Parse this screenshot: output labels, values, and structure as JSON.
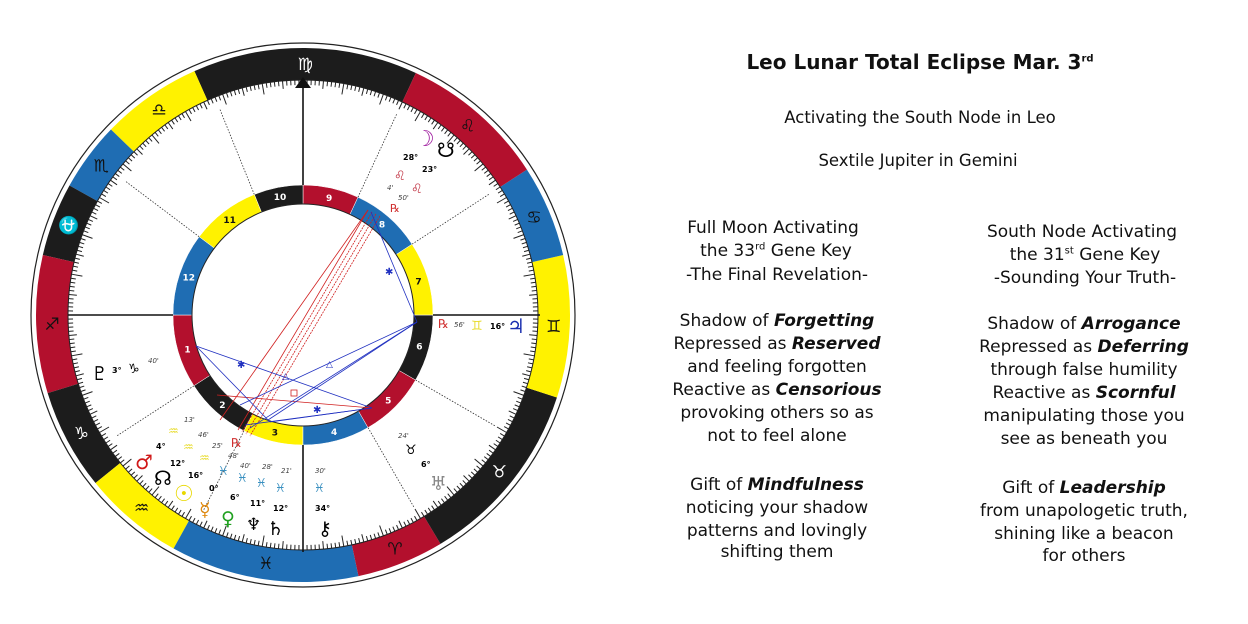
{
  "header": {
    "title": "Leo Lunar Total Eclipse Mar. 3",
    "title_sup": "rd",
    "subtitle1": "Activating the South Node in Leo",
    "subtitle2": "Sextile Jupiter in Gemini"
  },
  "left_column": {
    "heading1": "Full Moon Activating",
    "heading2_pre": "the 33",
    "heading2_sup": "rd",
    "heading2_post": " Gene Key",
    "heading3": "-The Final Revelation-",
    "lines": [
      {
        "text": "Shadow of ",
        "em": "Forgetting"
      },
      {
        "text": "Repressed as ",
        "em": "Reserved"
      },
      {
        "text": "and feeling forgotten",
        "em": ""
      },
      {
        "text": "Reactive as ",
        "em": "Censorious"
      },
      {
        "text": "provoking others so as",
        "em": ""
      },
      {
        "text": "not to feel alone",
        "em": ""
      },
      {
        "text": "Gift of ",
        "em": "Mindfulness"
      },
      {
        "text": "noticing your shadow",
        "em": ""
      },
      {
        "text": "patterns and lovingly",
        "em": ""
      },
      {
        "text": "shifting them",
        "em": ""
      }
    ]
  },
  "right_column": {
    "heading1": "South Node Activating",
    "heading2_pre": "the 31",
    "heading2_sup": "st",
    "heading2_post": " Gene Key",
    "heading3": "-Sounding Your Truth-",
    "lines": [
      {
        "text": "Shadow of ",
        "em": "Arrogance"
      },
      {
        "text": "Repressed as ",
        "em": "Deferring"
      },
      {
        "text": "through false humility",
        "em": ""
      },
      {
        "text": "Reactive as ",
        "em": "Scornful"
      },
      {
        "text": "manipulating those you",
        "em": ""
      },
      {
        "text": "see as beneath you",
        "em": ""
      },
      {
        "text": "Gift of ",
        "em": "Leadership"
      },
      {
        "text": "from unapologetic truth,",
        "em": ""
      },
      {
        "text": "shining like a beacon",
        "em": ""
      },
      {
        "text": "for others",
        "em": ""
      }
    ]
  },
  "chart": {
    "colors": {
      "black": "#1c1c1c",
      "yellow": "#fff200",
      "blue": "#1f6db3",
      "red": "#b3102d"
    },
    "signs": [
      {
        "name": "virgo",
        "glyph": "♍",
        "color": "black"
      },
      {
        "name": "libra",
        "glyph": "♎",
        "color": "yellow"
      },
      {
        "name": "scorpio",
        "glyph": "♏",
        "color": "blue"
      },
      {
        "name": "ophiuchus",
        "glyph": "⛎",
        "color": "black"
      },
      {
        "name": "sagittarius",
        "glyph": "♐",
        "color": "red"
      },
      {
        "name": "capricorn",
        "glyph": "♑",
        "color": "black"
      },
      {
        "name": "aquarius",
        "glyph": "♒",
        "color": "yellow"
      },
      {
        "name": "pisces",
        "glyph": "♓",
        "color": "blue"
      },
      {
        "name": "aries",
        "glyph": "♈",
        "color": "red"
      },
      {
        "name": "taurus",
        "glyph": "♉",
        "color": "black"
      },
      {
        "name": "gemini",
        "glyph": "♊",
        "color": "yellow"
      },
      {
        "name": "cancer",
        "glyph": "♋",
        "color": "blue"
      },
      {
        "name": "leo",
        "glyph": "♌",
        "color": "red"
      }
    ],
    "houses": [
      {
        "num": "1",
        "color": "red"
      },
      {
        "num": "2",
        "color": "black"
      },
      {
        "num": "3",
        "color": "yellow"
      },
      {
        "num": "4",
        "color": "blue"
      },
      {
        "num": "5",
        "color": "red"
      },
      {
        "num": "6",
        "color": "black"
      },
      {
        "num": "7",
        "color": "yellow"
      },
      {
        "num": "8",
        "color": "blue"
      },
      {
        "num": "9",
        "color": "red"
      },
      {
        "num": "10",
        "color": "black"
      },
      {
        "num": "11",
        "color": "yellow"
      },
      {
        "num": "12",
        "color": "blue"
      }
    ],
    "placements": {
      "moon": {
        "glyph": "☽",
        "deg": "28°",
        "sign": "♌",
        "min": "4'",
        "color": "#a020a0"
      },
      "south_node": {
        "glyph": "☋",
        "deg": "23°",
        "sign": "♌",
        "min": "50'",
        "retro": "℞"
      },
      "jupiter": {
        "glyph": "♃",
        "deg": "16°",
        "sign": "♊",
        "min": "56'",
        "retro": "℞",
        "color": "#1a2fb0"
      },
      "pluto": {
        "glyph": "♇",
        "deg": "3°",
        "sign": "♑",
        "min": "40'"
      },
      "mars": {
        "glyph": "♂",
        "deg": "4°",
        "sign": "♒",
        "min": "13'",
        "color": "#d01818"
      },
      "north_node": {
        "glyph": "☊",
        "deg": "12°",
        "sign": "♒",
        "min": "46'"
      },
      "sun": {
        "glyph": "☉",
        "deg": "16°",
        "sign": "♒",
        "min": "25'",
        "color": "#e8d800"
      },
      "mercury": {
        "glyph": "☿",
        "deg": "0°",
        "sign": "♓",
        "min": "48'",
        "retro": "℞",
        "color": "#e08a10"
      },
      "venus": {
        "glyph": "♀",
        "deg": "6°",
        "sign": "♓",
        "min": "40'",
        "color": "#20a020"
      },
      "neptune": {
        "glyph": "♆",
        "deg": "11°",
        "sign": "♓",
        "min": "28'"
      },
      "saturn": {
        "glyph": "♄",
        "deg": "12°",
        "sign": "♓",
        "min": "21'"
      },
      "chiron": {
        "glyph": "⚷",
        "deg": "34°",
        "sign": "♓",
        "min": "30'"
      },
      "uranus": {
        "glyph": "♅",
        "deg": "6°",
        "sign": "♉",
        "min": "24'",
        "color": "#888888"
      }
    }
  }
}
